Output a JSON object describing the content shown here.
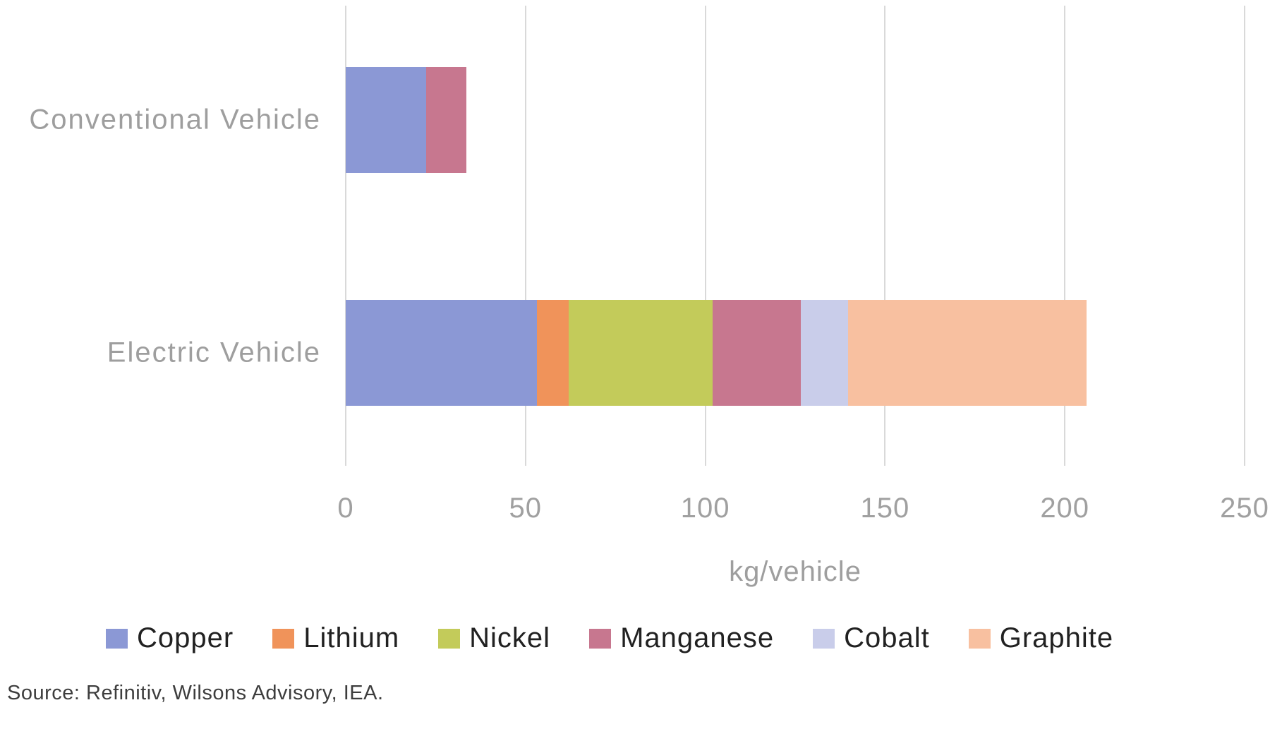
{
  "chart_data": {
    "type": "bar",
    "orientation": "horizontal",
    "stacked": true,
    "title": "",
    "categories": [
      "Conventional Vehicle",
      "Electric Vehicle"
    ],
    "series": [
      {
        "name": "Copper",
        "color": "#8b98d5",
        "values": [
          22.3,
          53.2
        ]
      },
      {
        "name": "Lithium",
        "color": "#f0935a",
        "values": [
          0,
          8.9
        ]
      },
      {
        "name": "Nickel",
        "color": "#c3cb5a",
        "values": [
          0,
          39.9
        ]
      },
      {
        "name": "Manganese",
        "color": "#c7778f",
        "values": [
          11.2,
          24.5
        ]
      },
      {
        "name": "Cobalt",
        "color": "#c9cdea",
        "values": [
          0,
          13.3
        ]
      },
      {
        "name": "Graphite",
        "color": "#f8c0a0",
        "values": [
          0,
          66.3
        ]
      }
    ],
    "xlabel": "kg/vehicle",
    "xlim": [
      0,
      250
    ],
    "xticks": [
      0,
      50,
      100,
      150,
      200,
      250
    ],
    "grid": true,
    "gridline_color": "#d9d9d9",
    "axis_text_color": "#a0a0a0",
    "legend_position": "bottom",
    "legend": [
      "Copper",
      "Lithium",
      "Nickel",
      "Manganese",
      "Cobalt",
      "Graphite"
    ]
  },
  "source_note": "Source: Refinitiv, Wilsons Advisory, IEA."
}
